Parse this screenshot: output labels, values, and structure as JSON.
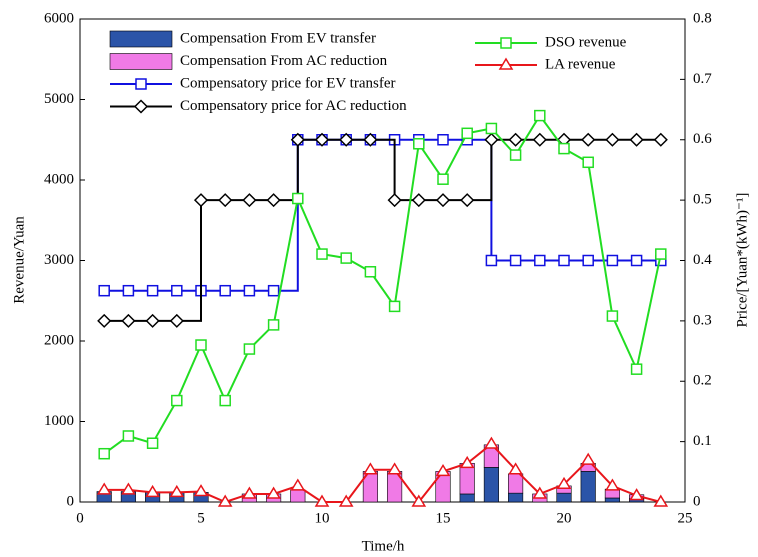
{
  "chart_data": {
    "type": "mixed",
    "xlabel": "Time/h",
    "ylabel": "Revenue/Yuan",
    "y2label": "Price/[Yuan*(kWh)⁻¹]",
    "x": [
      1,
      2,
      3,
      4,
      5,
      6,
      7,
      8,
      9,
      10,
      11,
      12,
      13,
      14,
      15,
      16,
      17,
      18,
      19,
      20,
      21,
      22,
      23,
      24
    ],
    "xlim": [
      0,
      25
    ],
    "xticks": [
      0,
      5,
      10,
      15,
      20,
      25
    ],
    "ylim": [
      0,
      6000
    ],
    "yticks": [
      0,
      1000,
      2000,
      3000,
      4000,
      5000,
      6000
    ],
    "y2lim": [
      0,
      0.8
    ],
    "y2ticks": [
      0,
      0.1,
      0.2,
      0.3,
      0.4,
      0.5,
      0.6,
      0.7,
      0.8
    ],
    "stacked": true,
    "series": [
      {
        "name": "Compensation From EV transfer",
        "type": "bar",
        "color": "#2b54a8",
        "values": [
          130,
          130,
          120,
          120,
          120,
          0,
          0,
          0,
          0,
          0,
          0,
          0,
          0,
          0,
          0,
          100,
          430,
          110,
          0,
          110,
          380,
          50,
          40,
          0
        ]
      },
      {
        "name": "Compensation From AC reduction",
        "type": "bar",
        "color": "#f07ae6",
        "values": [
          0,
          0,
          0,
          0,
          0,
          0,
          100,
          100,
          150,
          0,
          0,
          380,
          380,
          0,
          380,
          380,
          280,
          240,
          100,
          90,
          100,
          110,
          50,
          0
        ]
      },
      {
        "name": "Compensatory price for EV transfer",
        "type": "step",
        "axis": "y2",
        "color": "#1010e0",
        "marker": "square",
        "values": [
          0.35,
          0.35,
          0.35,
          0.35,
          0.35,
          0.35,
          0.35,
          0.35,
          0.6,
          0.6,
          0.6,
          0.6,
          0.6,
          0.6,
          0.6,
          0.6,
          0.4,
          0.4,
          0.4,
          0.4,
          0.4,
          0.4,
          0.4,
          0.4
        ]
      },
      {
        "name": "Compensatory price for AC reduction",
        "type": "step",
        "axis": "y2",
        "color": "#000000",
        "marker": "diamond",
        "values": [
          0.3,
          0.3,
          0.3,
          0.3,
          0.5,
          0.5,
          0.5,
          0.5,
          0.6,
          0.6,
          0.6,
          0.6,
          0.5,
          0.5,
          0.5,
          0.5,
          0.6,
          0.6,
          0.6,
          0.6,
          0.6,
          0.6,
          0.6,
          0.6
        ]
      },
      {
        "name": "DSO revenue",
        "type": "line",
        "color": "#22dd22",
        "marker": "square",
        "values": [
          600,
          820,
          730,
          1260,
          1950,
          1260,
          1900,
          2200,
          3770,
          3080,
          3030,
          2860,
          2430,
          4450,
          4010,
          4580,
          4640,
          4310,
          4800,
          4390,
          4220,
          2310,
          1650,
          3080
        ]
      },
      {
        "name": "LA revenue",
        "type": "line",
        "color": "#e8161b",
        "marker": "triangle",
        "values": [
          150,
          150,
          120,
          120,
          130,
          0,
          100,
          100,
          200,
          0,
          0,
          400,
          400,
          0,
          380,
          480,
          720,
          400,
          100,
          220,
          520,
          200,
          80,
          0
        ]
      }
    ]
  }
}
